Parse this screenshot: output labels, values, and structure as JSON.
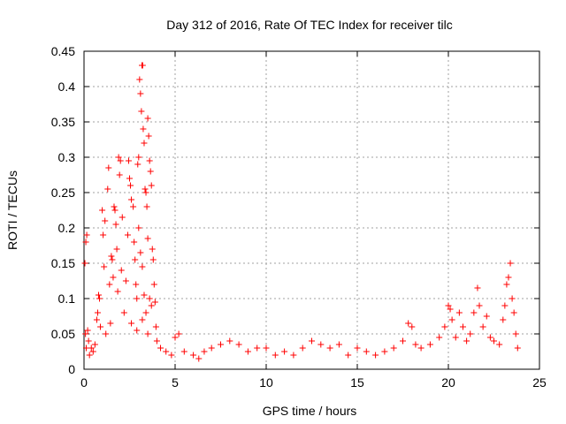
{
  "chart_data": {
    "type": "scatter",
    "title": "Day 312 of 2016, Rate Of TEC Index for receiver tilc",
    "xlabel": "GPS time / hours",
    "ylabel": "ROTI / TECUs",
    "xlim": [
      0,
      25
    ],
    "ylim": [
      0,
      0.45
    ],
    "x_ticks": [
      0,
      5,
      10,
      15,
      20,
      25
    ],
    "x_tick_labels": [
      "0",
      "5",
      "10",
      "15",
      "20",
      "25"
    ],
    "y_ticks": [
      0,
      0.05,
      0.1,
      0.15,
      0.2,
      0.25,
      0.3,
      0.35,
      0.4,
      0.45
    ],
    "y_tick_labels": [
      "0",
      "0.05",
      "0.1",
      "0.15",
      "0.2",
      "0.25",
      "0.3",
      "0.35",
      "0.4",
      "0.45"
    ],
    "grid": true,
    "marker": "+",
    "color": "#ff0000",
    "series": [
      {
        "name": "ROTI",
        "points": [
          [
            0.05,
            0.15
          ],
          [
            0.1,
            0.18
          ],
          [
            0.15,
            0.19
          ],
          [
            0.08,
            0.05
          ],
          [
            0.12,
            0.03
          ],
          [
            0.2,
            0.055
          ],
          [
            0.25,
            0.04
          ],
          [
            0.3,
            0.02
          ],
          [
            0.4,
            0.03
          ],
          [
            0.5,
            0.025
          ],
          [
            0.6,
            0.035
          ],
          [
            0.7,
            0.07
          ],
          [
            0.75,
            0.08
          ],
          [
            0.8,
            0.105
          ],
          [
            0.85,
            0.1
          ],
          [
            0.9,
            0.06
          ],
          [
            1.0,
            0.225
          ],
          [
            1.05,
            0.19
          ],
          [
            1.1,
            0.145
          ],
          [
            1.15,
            0.21
          ],
          [
            1.2,
            0.05
          ],
          [
            1.3,
            0.255
          ],
          [
            1.35,
            0.285
          ],
          [
            1.4,
            0.12
          ],
          [
            1.45,
            0.065
          ],
          [
            1.5,
            0.16
          ],
          [
            1.55,
            0.155
          ],
          [
            1.6,
            0.13
          ],
          [
            1.65,
            0.23
          ],
          [
            1.7,
            0.225
          ],
          [
            1.75,
            0.205
          ],
          [
            1.8,
            0.17
          ],
          [
            1.85,
            0.11
          ],
          [
            1.9,
            0.3
          ],
          [
            1.95,
            0.275
          ],
          [
            2.0,
            0.295
          ],
          [
            2.05,
            0.14
          ],
          [
            2.1,
            0.215
          ],
          [
            2.2,
            0.08
          ],
          [
            2.3,
            0.125
          ],
          [
            2.4,
            0.19
          ],
          [
            2.45,
            0.295
          ],
          [
            2.5,
            0.27
          ],
          [
            2.55,
            0.26
          ],
          [
            2.6,
            0.24
          ],
          [
            2.7,
            0.23
          ],
          [
            2.75,
            0.18
          ],
          [
            2.8,
            0.155
          ],
          [
            2.85,
            0.12
          ],
          [
            2.9,
            0.1
          ],
          [
            2.95,
            0.29
          ],
          [
            3.0,
            0.3
          ],
          [
            3.05,
            0.41
          ],
          [
            3.1,
            0.39
          ],
          [
            3.15,
            0.365
          ],
          [
            3.18,
            0.43
          ],
          [
            3.22,
            0.43
          ],
          [
            3.25,
            0.34
          ],
          [
            3.3,
            0.32
          ],
          [
            3.35,
            0.255
          ],
          [
            3.4,
            0.25
          ],
          [
            3.45,
            0.23
          ],
          [
            3.5,
            0.355
          ],
          [
            3.55,
            0.33
          ],
          [
            3.6,
            0.295
          ],
          [
            3.65,
            0.28
          ],
          [
            3.7,
            0.26
          ],
          [
            3.75,
            0.17
          ],
          [
            3.8,
            0.155
          ],
          [
            3.85,
            0.12
          ],
          [
            3.9,
            0.095
          ],
          [
            3.95,
            0.06
          ],
          [
            3.0,
            0.2
          ],
          [
            3.1,
            0.165
          ],
          [
            3.2,
            0.145
          ],
          [
            3.3,
            0.105
          ],
          [
            3.4,
            0.08
          ],
          [
            3.5,
            0.185
          ],
          [
            3.6,
            0.1
          ],
          [
            3.7,
            0.09
          ],
          [
            2.6,
            0.065
          ],
          [
            2.9,
            0.055
          ],
          [
            3.2,
            0.07
          ],
          [
            3.5,
            0.05
          ],
          [
            4.0,
            0.04
          ],
          [
            4.2,
            0.03
          ],
          [
            4.5,
            0.025
          ],
          [
            4.8,
            0.02
          ],
          [
            5.0,
            0.045
          ],
          [
            5.2,
            0.05
          ],
          [
            5.5,
            0.025
          ],
          [
            6.0,
            0.02
          ],
          [
            6.3,
            0.015
          ],
          [
            6.6,
            0.025
          ],
          [
            7.0,
            0.03
          ],
          [
            7.5,
            0.035
          ],
          [
            8.0,
            0.04
          ],
          [
            8.5,
            0.035
          ],
          [
            9.0,
            0.025
          ],
          [
            9.5,
            0.03
          ],
          [
            10.0,
            0.03
          ],
          [
            10.5,
            0.02
          ],
          [
            11.0,
            0.025
          ],
          [
            11.5,
            0.02
          ],
          [
            12.0,
            0.03
          ],
          [
            12.5,
            0.04
          ],
          [
            13.0,
            0.035
          ],
          [
            13.5,
            0.03
          ],
          [
            14.0,
            0.035
          ],
          [
            14.5,
            0.02
          ],
          [
            15.0,
            0.03
          ],
          [
            15.5,
            0.025
          ],
          [
            16.0,
            0.02
          ],
          [
            16.5,
            0.025
          ],
          [
            17.0,
            0.03
          ],
          [
            17.5,
            0.04
          ],
          [
            17.8,
            0.065
          ],
          [
            18.0,
            0.06
          ],
          [
            18.2,
            0.035
          ],
          [
            18.5,
            0.03
          ],
          [
            19.0,
            0.035
          ],
          [
            19.5,
            0.045
          ],
          [
            19.8,
            0.06
          ],
          [
            20.0,
            0.09
          ],
          [
            20.1,
            0.085
          ],
          [
            20.2,
            0.07
          ],
          [
            20.4,
            0.045
          ],
          [
            20.6,
            0.08
          ],
          [
            20.8,
            0.06
          ],
          [
            21.0,
            0.04
          ],
          [
            21.2,
            0.05
          ],
          [
            21.4,
            0.08
          ],
          [
            21.6,
            0.115
          ],
          [
            21.7,
            0.09
          ],
          [
            21.9,
            0.06
          ],
          [
            22.1,
            0.075
          ],
          [
            22.3,
            0.045
          ],
          [
            22.5,
            0.04
          ],
          [
            22.8,
            0.035
          ],
          [
            23.0,
            0.07
          ],
          [
            23.1,
            0.09
          ],
          [
            23.2,
            0.12
          ],
          [
            23.3,
            0.13
          ],
          [
            23.4,
            0.15
          ],
          [
            23.5,
            0.1
          ],
          [
            23.6,
            0.08
          ],
          [
            23.7,
            0.05
          ],
          [
            23.8,
            0.03
          ]
        ]
      }
    ]
  }
}
